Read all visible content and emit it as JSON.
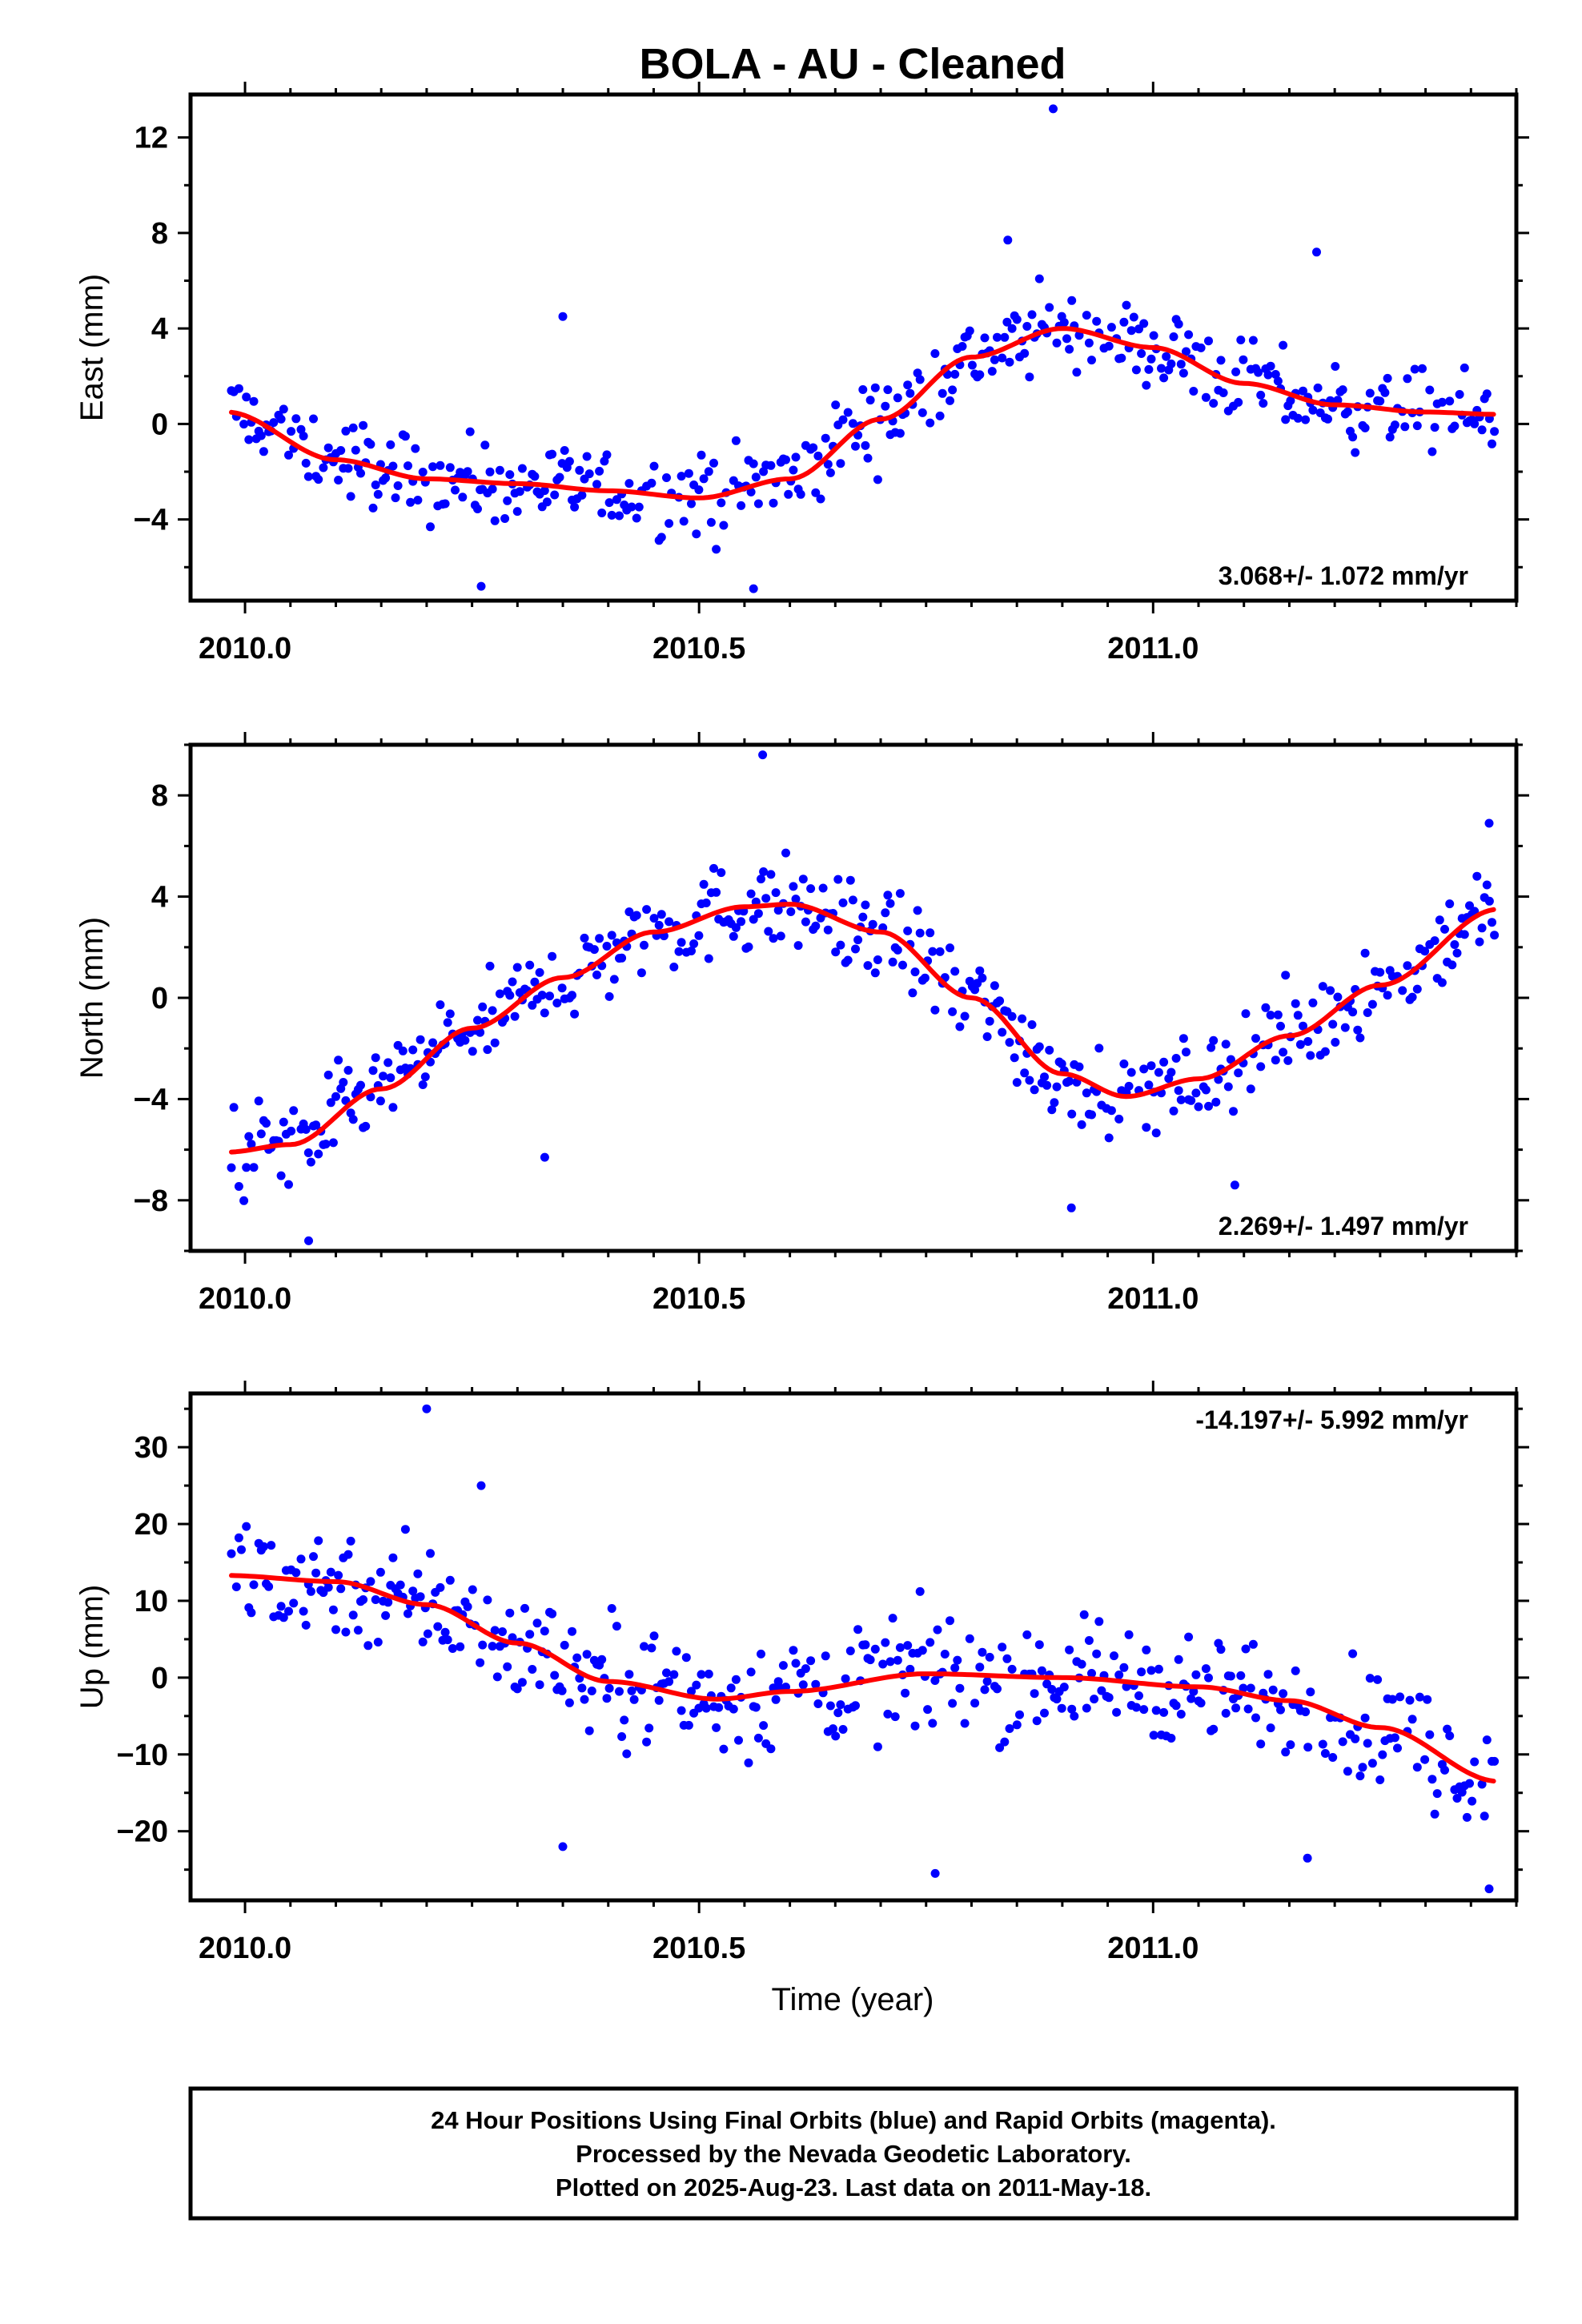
{
  "title": "BOLA  - AU - Cleaned",
  "x_label": "Time (year)",
  "footer": {
    "line1": "24 Hour Positions Using Final Orbits (blue) and Rapid Orbits (magenta).",
    "line2": "Processed by the Nevada Geodetic Laboratory.",
    "line3": "Plotted on 2025-Aug-23. Last data on 2011-May-18."
  },
  "colors": {
    "points": "#0000ff",
    "fit": "#ff0000",
    "frame": "#000000"
  },
  "chart_data": [
    {
      "type": "scatter",
      "ylabel": "East (mm)",
      "rate_text": "3.068+/- 1.072 mm/yr",
      "xlim": [
        2009.94,
        2011.4
      ],
      "ylim": [
        -7.4,
        13.8
      ],
      "x_ticks": [
        2010.0,
        2010.5,
        2011.0
      ],
      "x_tick_labels": [
        "2010.0",
        "2010.5",
        "2011.0"
      ],
      "y_ticks": [
        -4,
        0,
        4,
        8,
        12
      ],
      "y_tick_labels": [
        "−4",
        "0",
        "4",
        "8",
        "12"
      ],
      "fit_knots": [
        [
          2009.98,
          0.5
        ],
        [
          2010.1,
          -1.5
        ],
        [
          2010.2,
          -2.3
        ],
        [
          2010.3,
          -2.5
        ],
        [
          2010.4,
          -2.8
        ],
        [
          2010.5,
          -3.1
        ],
        [
          2010.6,
          -2.3
        ],
        [
          2010.7,
          0.2
        ],
        [
          2010.8,
          2.8
        ],
        [
          2010.9,
          4.0
        ],
        [
          2011.0,
          3.2
        ],
        [
          2011.1,
          1.7
        ],
        [
          2011.2,
          0.8
        ],
        [
          2011.3,
          0.5
        ],
        [
          2011.38,
          0.4
        ]
      ],
      "noise": 1.4,
      "outliers": [
        [
          2010.89,
          13.2
        ],
        [
          2010.35,
          4.5
        ],
        [
          2010.26,
          -6.8
        ],
        [
          2010.56,
          -6.9
        ],
        [
          2010.84,
          7.7
        ],
        [
          2011.18,
          7.2
        ]
      ]
    },
    {
      "type": "scatter",
      "ylabel": "North (mm)",
      "rate_text": "2.269+/- 1.497 mm/yr",
      "xlim": [
        2009.94,
        2011.4
      ],
      "ylim": [
        -10.0,
        10.0
      ],
      "x_ticks": [
        2010.0,
        2010.5,
        2011.0
      ],
      "x_tick_labels": [
        "2010.0",
        "2010.5",
        "2011.0"
      ],
      "y_ticks": [
        -8,
        -4,
        0,
        4,
        8
      ],
      "y_tick_labels": [
        "−8",
        "−4",
        "0",
        "4",
        "8"
      ],
      "fit_knots": [
        [
          2009.98,
          -6.1
        ],
        [
          2010.05,
          -5.8
        ],
        [
          2010.15,
          -3.6
        ],
        [
          2010.25,
          -1.2
        ],
        [
          2010.35,
          0.8
        ],
        [
          2010.45,
          2.6
        ],
        [
          2010.55,
          3.6
        ],
        [
          2010.6,
          3.7
        ],
        [
          2010.7,
          2.6
        ],
        [
          2010.8,
          0.0
        ],
        [
          2010.9,
          -3.0
        ],
        [
          2010.97,
          -3.9
        ],
        [
          2011.05,
          -3.2
        ],
        [
          2011.15,
          -1.5
        ],
        [
          2011.25,
          0.5
        ],
        [
          2011.38,
          3.5
        ]
      ],
      "noise": 1.5,
      "outliers": [
        [
          2010.57,
          9.6
        ],
        [
          2010.07,
          -9.6
        ],
        [
          2010.33,
          -6.3
        ],
        [
          2010.91,
          -8.3
        ],
        [
          2011.09,
          -7.4
        ],
        [
          2011.37,
          6.9
        ]
      ]
    },
    {
      "type": "scatter",
      "ylabel": "Up (mm)",
      "rate_text": "-14.197+/- 5.992 mm/yr",
      "xlim": [
        2009.94,
        2011.4
      ],
      "ylim": [
        -29.0,
        37.0
      ],
      "x_ticks": [
        2010.0,
        2010.5,
        2011.0
      ],
      "x_tick_labels": [
        "2010.0",
        "2010.5",
        "2011.0"
      ],
      "y_ticks": [
        -20,
        -10,
        0,
        10,
        20,
        30
      ],
      "y_tick_labels": [
        "−20",
        "−10",
        "0",
        "10",
        "20",
        "30"
      ],
      "fit_knots": [
        [
          2009.98,
          13.3
        ],
        [
          2010.1,
          12.5
        ],
        [
          2010.2,
          9.5
        ],
        [
          2010.3,
          4.5
        ],
        [
          2010.4,
          -0.5
        ],
        [
          2010.52,
          -2.8
        ],
        [
          2010.6,
          -1.8
        ],
        [
          2010.75,
          0.5
        ],
        [
          2010.9,
          0.0
        ],
        [
          2011.05,
          -1.2
        ],
        [
          2011.15,
          -3.0
        ],
        [
          2011.25,
          -6.5
        ],
        [
          2011.38,
          -13.5
        ]
      ],
      "noise": 6.0,
      "outliers": [
        [
          2010.2,
          35.0
        ],
        [
          2010.26,
          25.0
        ],
        [
          2010.76,
          -25.5
        ],
        [
          2011.37,
          -27.5
        ],
        [
          2010.35,
          -22.0
        ],
        [
          2011.17,
          -23.5
        ]
      ]
    }
  ]
}
